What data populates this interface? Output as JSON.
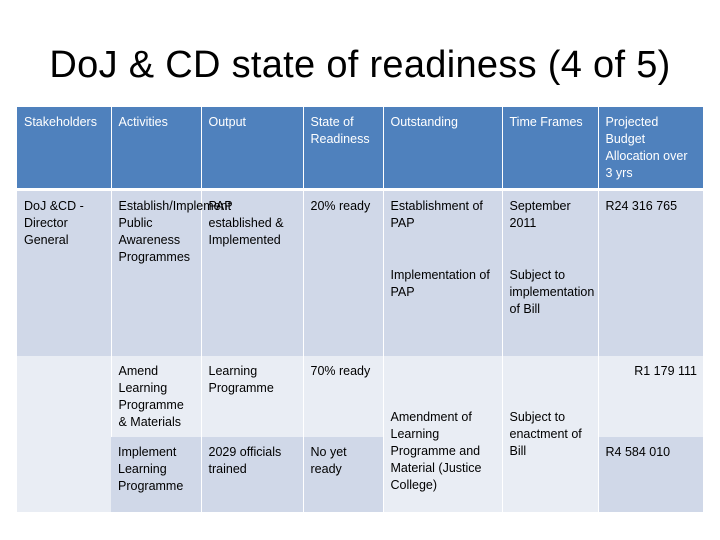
{
  "title": "DoJ & CD state of readiness (4 of 5)",
  "table": {
    "headers": [
      "Stakeholders",
      "Activities",
      "Output",
      "State of Readiness",
      "Outstanding",
      "Time Frames",
      "Projected Budget Allocation over 3 yrs"
    ],
    "row1": {
      "stakeholder": "DoJ &CD - Director General",
      "activity": "Establish/Implement Public Awareness Programmes",
      "output": "PAP established & Implemented",
      "state": "20% ready",
      "outstanding_1": "Establishment of PAP",
      "outstanding_2": "Implementation of PAP",
      "timeframe_1": "September 2011",
      "timeframe_2": "Subject to implementation of Bill",
      "budget": "R24 316 765"
    },
    "row2": {
      "stakeholder": "",
      "activity": "Amend Learning Programme & Materials",
      "output": "Learning Programme",
      "state": "70% ready",
      "budget": "R1 179 111"
    },
    "row3": {
      "activity": "Implement Learning Programme",
      "output": "2029 officials trained",
      "state": "No yet ready",
      "budget": "R4 584 010"
    },
    "merged": {
      "outstanding": "Amendment of Learning Programme and Material (Justice College)",
      "timeframe": "Subject to enactment of Bill"
    }
  }
}
